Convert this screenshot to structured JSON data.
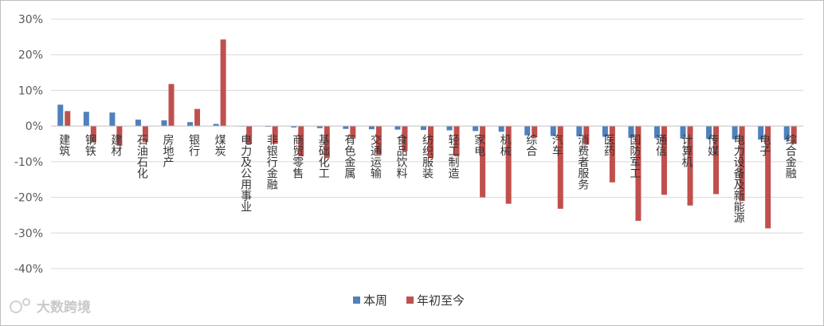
{
  "chart_data": {
    "type": "bar",
    "categories": [
      "建筑",
      "钢铁",
      "建材",
      "石油石化",
      "房地产",
      "银行",
      "煤炭",
      "电力及公用事业",
      "非银行金融",
      "商贸零售",
      "基础化工",
      "有色金属",
      "交通运输",
      "食品饮料",
      "纺织服装",
      "轻工制造",
      "家电",
      "机械",
      "综合",
      "汽车",
      "消费者服务",
      "医药",
      "国防军工",
      "通信",
      "计算机",
      "传媒",
      "电力设备及新能源",
      "电子",
      "综合金融"
    ],
    "series": [
      {
        "name": "本周",
        "color": "#4f81bd",
        "values": [
          6.0,
          4.0,
          3.8,
          1.8,
          1.6,
          1.1,
          0.6,
          -0.1,
          -0.2,
          -0.4,
          -0.6,
          -0.8,
          -0.9,
          -1.0,
          -1.1,
          -1.2,
          -1.4,
          -1.6,
          -2.6,
          -2.8,
          -2.9,
          -3.0,
          -3.3,
          -3.4,
          -3.5,
          -3.6,
          -3.7,
          -3.8,
          -3.9
        ]
      },
      {
        "name": "年初至今",
        "color": "#c0504d",
        "values": [
          4.2,
          -4.5,
          -5.5,
          -4.5,
          11.8,
          4.8,
          24.3,
          -5.0,
          -5.0,
          -8.5,
          -9.0,
          -3.5,
          -8.0,
          -7.0,
          -9.0,
          -8.5,
          -20.0,
          -21.8,
          -3.2,
          -23.2,
          -5.2,
          -15.8,
          -26.6,
          -19.3,
          -22.3,
          -19.1,
          -21.0,
          -28.7,
          -5.0
        ]
      }
    ],
    "ylim": [
      -40,
      30
    ],
    "yticks": [
      -40,
      -30,
      -20,
      -10,
      0,
      10,
      20,
      30
    ],
    "ytick_labels": [
      "-40%",
      "-30%",
      "-20%",
      "-10%",
      "0%",
      "10%",
      "20%",
      "30%"
    ],
    "grid": true,
    "legend_position": "bottom"
  },
  "watermark": "大数跨境"
}
